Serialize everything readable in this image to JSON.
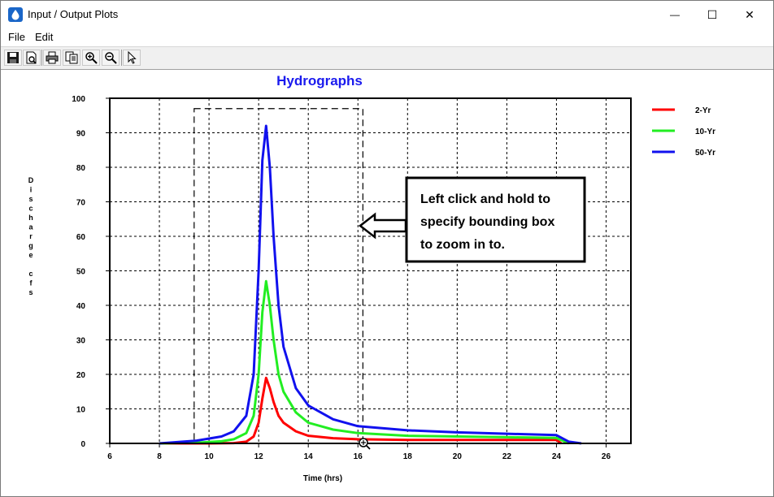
{
  "window": {
    "title": "Input / Output Plots",
    "controls": {
      "minimize": "—",
      "maximize": "☐",
      "close": "✕"
    }
  },
  "menu": {
    "items": [
      "File",
      "Edit"
    ]
  },
  "toolbar": {
    "buttons": [
      "save-icon",
      "print-preview-icon",
      "print-icon",
      "copy-icon",
      "zoom-in-icon",
      "zoom-out-icon",
      "pointer-icon"
    ]
  },
  "annotation": {
    "lines": [
      "Left click and hold to",
      "specify bounding box",
      "to zoom in to."
    ]
  },
  "chart_data": {
    "type": "line",
    "title": "Hydrographs",
    "xlabel": "Time (hrs)",
    "ylabel": "Discharge cfs",
    "ylabel_chars": [
      "D",
      "i",
      "s",
      "c",
      "h",
      "a",
      "r",
      "g",
      "e",
      "",
      "c",
      "f",
      "s"
    ],
    "xlim": [
      6,
      27
    ],
    "ylim": [
      0,
      100
    ],
    "xticks": [
      6,
      8,
      10,
      12,
      14,
      16,
      18,
      20,
      22,
      24,
      26
    ],
    "yticks": [
      0,
      10,
      20,
      30,
      40,
      50,
      60,
      70,
      80,
      90,
      100
    ],
    "grid": true,
    "legend_position": "right",
    "zoom_box": {
      "x": [
        9.4,
        16.2
      ],
      "y": [
        0,
        97
      ]
    },
    "series": [
      {
        "name": "2-Yr",
        "color": "#ff0000",
        "points": [
          [
            8,
            0
          ],
          [
            10,
            0
          ],
          [
            11,
            0.1
          ],
          [
            11.5,
            0.5
          ],
          [
            11.8,
            2
          ],
          [
            12,
            6
          ],
          [
            12.15,
            13
          ],
          [
            12.3,
            19
          ],
          [
            12.45,
            16
          ],
          [
            12.6,
            12
          ],
          [
            12.8,
            8
          ],
          [
            13,
            6
          ],
          [
            13.5,
            3.5
          ],
          [
            14,
            2.2
          ],
          [
            15,
            1.5
          ],
          [
            16,
            1.2
          ],
          [
            18,
            1
          ],
          [
            20,
            1
          ],
          [
            22,
            1
          ],
          [
            24,
            1
          ],
          [
            24.2,
            0
          ]
        ]
      },
      {
        "name": "10-Yr",
        "color": "#22ee22",
        "points": [
          [
            8,
            0
          ],
          [
            9.5,
            0.2
          ],
          [
            10.5,
            0.6
          ],
          [
            11,
            1.2
          ],
          [
            11.5,
            3
          ],
          [
            11.8,
            8
          ],
          [
            12,
            20
          ],
          [
            12.15,
            38
          ],
          [
            12.3,
            47
          ],
          [
            12.45,
            40
          ],
          [
            12.6,
            30
          ],
          [
            12.8,
            20
          ],
          [
            13,
            15
          ],
          [
            13.5,
            9
          ],
          [
            14,
            6
          ],
          [
            15,
            4
          ],
          [
            16,
            3
          ],
          [
            18,
            2.2
          ],
          [
            20,
            2
          ],
          [
            22,
            1.8
          ],
          [
            24,
            1.6
          ],
          [
            24.5,
            0
          ]
        ]
      },
      {
        "name": "50-Yr",
        "color": "#1111ee",
        "points": [
          [
            8,
            0
          ],
          [
            9.5,
            0.8
          ],
          [
            10.5,
            2
          ],
          [
            11,
            3.5
          ],
          [
            11.5,
            8
          ],
          [
            11.8,
            20
          ],
          [
            12,
            50
          ],
          [
            12.15,
            82
          ],
          [
            12.3,
            92
          ],
          [
            12.45,
            80
          ],
          [
            12.6,
            60
          ],
          [
            12.8,
            40
          ],
          [
            13,
            28
          ],
          [
            13.5,
            16
          ],
          [
            14,
            11
          ],
          [
            15,
            7
          ],
          [
            16,
            5
          ],
          [
            18,
            3.8
          ],
          [
            20,
            3.2
          ],
          [
            22,
            2.8
          ],
          [
            24,
            2.4
          ],
          [
            24.5,
            0.5
          ],
          [
            25,
            0
          ]
        ]
      }
    ]
  }
}
